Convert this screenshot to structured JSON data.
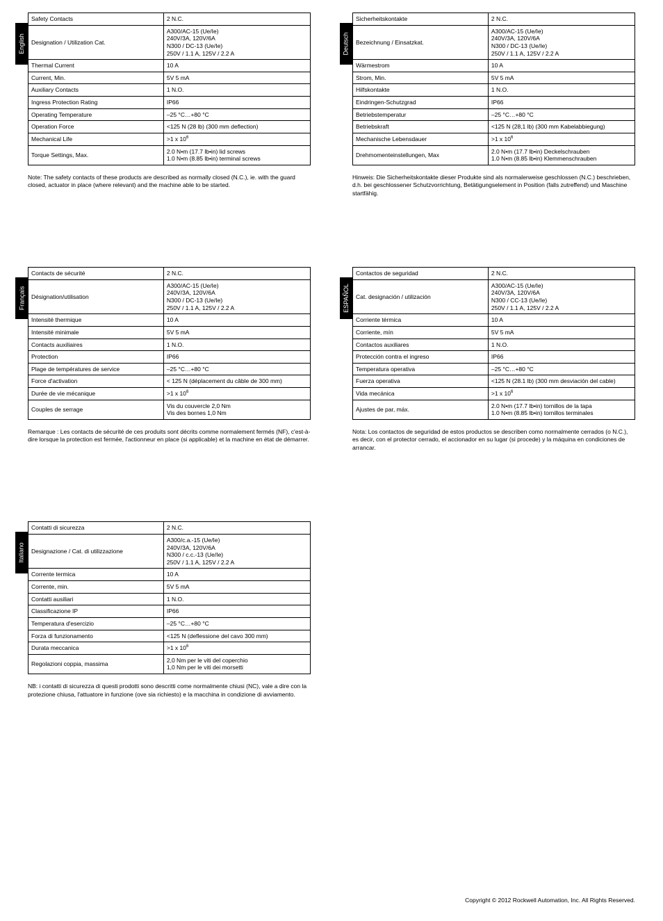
{
  "languages": [
    {
      "tab": "English",
      "note": "Note: The safety contacts of  these products are described as normally closed (N.C.), ie. with the guard closed, actuator in place (where relevant) and the machine able to be started.",
      "rows": [
        {
          "label": "Safety Contacts",
          "value": "2 N.C."
        },
        {
          "label": "Designation / Utilization Cat.",
          "value": "A300/AC-15 (Ue/Ie)\n240V/3A, 120V/6A\nN300 / DC-13 (Ue/Ie)\n250V / 1.1 A, 125V / 2.2 A"
        },
        {
          "label": "Thermal Current",
          "value": "10 A"
        },
        {
          "label": "Current, Min.",
          "value": "5V 5 mA"
        },
        {
          "label": "Auxiliary Contacts",
          "value": "1 N.O."
        },
        {
          "label": "Ingress Protection Rating",
          "value": "IP66"
        },
        {
          "label": "Operating Temperature",
          "value": "–25 °C…+80 °C"
        },
        {
          "label": "Operation Force",
          "value": "<125 N (28 lb) (300 mm deflection)"
        },
        {
          "label": "Mechanical Life",
          "value_html": ">1 x 10<sup>6</sup>"
        },
        {
          "label": "Torque Settings, Max.",
          "value": "2.0 N•m (17.7 lb•in) lid screws\n1.0 N•m (8.85 lb•in) terminal screws"
        }
      ]
    },
    {
      "tab": "Deutsch",
      "note": "Hinweis: Die Sicherheitskontakte dieser Produkte sind als normalerweise geschlossen (N.C.) beschrieben, d.h. bei geschlossener Schutzvorrichtung, Betätigungselement in Position (falls zutreffend) und Maschine startfähig.",
      "rows": [
        {
          "label": "Sicherheitskontakte",
          "value": "2 N.C."
        },
        {
          "label": "Bezeichnung / Einsatzkat.",
          "value": "A300/AC-15 (Ue/Ie)\n240V/3A, 120V/6A\nN300 / DC-13 (Ue/Ie)\n250V / 1.1 A, 125V / 2.2 A"
        },
        {
          "label": "Wärmestrom",
          "value": "10 A"
        },
        {
          "label": "Strom, Min.",
          "value": "5V 5 mA"
        },
        {
          "label": "Hilfskontakte",
          "value": "1 N.O."
        },
        {
          "label": "Eindringen-Schutzgrad",
          "value": "IP66"
        },
        {
          "label": "Betriebstemperatur",
          "value": "–25 °C…+80 °C"
        },
        {
          "label": "Betriebskraft",
          "value": "<125 N (28,1 lb) (300 mm Kabelabbiegung)"
        },
        {
          "label": "Mechanische Lebensdauer",
          "value_html": ">1 x 10<sup>6</sup>"
        },
        {
          "label": "Drehmomenteinstellungen, Max",
          "value": "2.0 N•m (17.7 lb•in) Deckelschrauben\n1.0 N•m (8.85 lb•in) Klemmenschrauben"
        }
      ]
    },
    {
      "tab": "Français",
      "note": "Remarque : Les contacts de sécurité de ces produits sont décrits comme normalement fermés (NF), c'est-à-dire lorsque la protection est fermée, l'actionneur en place (si applicable) et la machine en état de démarrer.",
      "rows": [
        {
          "label": "Contacts de sécurité",
          "value": "2 N.C."
        },
        {
          "label": "Désignation/utilisation",
          "value": "A300/AC-15 (Ue/Ie)\n240V/3A, 120V/6A\nN300 / DC-13 (Ue/Ie)\n250V / 1.1 A, 125V / 2.2 A"
        },
        {
          "label": "Intensité thermique",
          "value": "10 A"
        },
        {
          "label": "Intensité minimale",
          "value": "5V 5 mA"
        },
        {
          "label": "Contacts auxiliaires",
          "value": "1 N.O."
        },
        {
          "label": "Protection",
          "value": "IP66"
        },
        {
          "label": "Plage de températures de service",
          "value": "–25 °C…+80 °C"
        },
        {
          "label": "Force d'activation",
          "value": "< 125 N (déplacement du câble de 300 mm)"
        },
        {
          "label": "Durée de vie mécanique",
          "value_html": ">1 x 10<sup>6</sup>"
        },
        {
          "label": "Couples de serrage",
          "value": "Vis du couvercle 2,0 Nm\nVis des bornes 1,0 Nm"
        }
      ]
    },
    {
      "tab": "ESPAÑOL",
      "note": "Nota: Los contactos de seguridad de estos productos se describen como normalmente cerrados (o N.C.), es decir, con el protector cerrado, el accionador en su lugar (si procede) y la máquina en condiciones de arrancar.",
      "rows": [
        {
          "label": "Contactos de seguridad",
          "value": "2 N.C."
        },
        {
          "label": "Cat. designación / utilización",
          "value": "A300/AC-15 (Ue/Ie)\n240V/3A, 120V/6A\nN300 / CC-13 (Ue/Ie)\n250V / 1.1 A, 125V / 2.2 A"
        },
        {
          "label": "Corriente térmica",
          "value": "10 A"
        },
        {
          "label": "Corriente, mín",
          "value": "5V 5 mA"
        },
        {
          "label": "Contactos auxiliares",
          "value": "1 N.O."
        },
        {
          "label": "Protección contra el ingreso",
          "value": "IP66"
        },
        {
          "label": "Temperatura operativa",
          "value": "–25 °C…+80 °C"
        },
        {
          "label": "Fuerza operativa",
          "value": "<125 N (28.1 lb) (300 mm desviación del cable)"
        },
        {
          "label": "Vida mecánica",
          "value_html": ">1 x 10<sup>6</sup>"
        },
        {
          "label": "Ajustes de par, máx.",
          "value": "2.0 N•m (17.7 lb•in) tornillos de la tapa\n1.0 N•m (8.85 lb•in) tornillos terminales"
        }
      ]
    },
    {
      "tab": "Italiano",
      "note": "NB: i contatti di sicurezza di questi prodotti sono descritti come normalmente chiusi (NC), vale a dire con la protezione chiusa, l'attuatore in funzione (ove sia richiesto) e la macchina in condizione di avviamento.",
      "rows": [
        {
          "label": "Contatti di sicurezza",
          "value": "2 N.C."
        },
        {
          "label": "Designazione / Cat. di utilizzazione",
          "value": "A300/c.a.-15 (Ue/Ie)\n240V/3A, 120V/6A\nN300 / c.c.-13 (Ue/Ie)\n250V / 1.1 A, 125V / 2.2 A"
        },
        {
          "label": "Corrente termica",
          "value": "10 A"
        },
        {
          "label": "Corrente, min.",
          "value": "5V 5 mA"
        },
        {
          "label": "Contatti ausiliari",
          "value": "1 N.O."
        },
        {
          "label": "Classificazione IP",
          "value": "IP66"
        },
        {
          "label": "Temperatura d'esercizio",
          "value": "–25 °C…+80 °C"
        },
        {
          "label": "Forza di funzionamento",
          "value": "<125 N (deflessione del cavo 300 mm)"
        },
        {
          "label": "Durata meccanica",
          "value_html": ">1 x 10<sup>6</sup>"
        },
        {
          "label": "Regolazioni coppia, massima",
          "value": "2,0 Nm per le viti del coperchio\n1,0 Nm per le viti dei morsetti"
        }
      ]
    }
  ],
  "copyright": "Copyright © 2012 Rockwell Automation, Inc. All Rights Reserved."
}
